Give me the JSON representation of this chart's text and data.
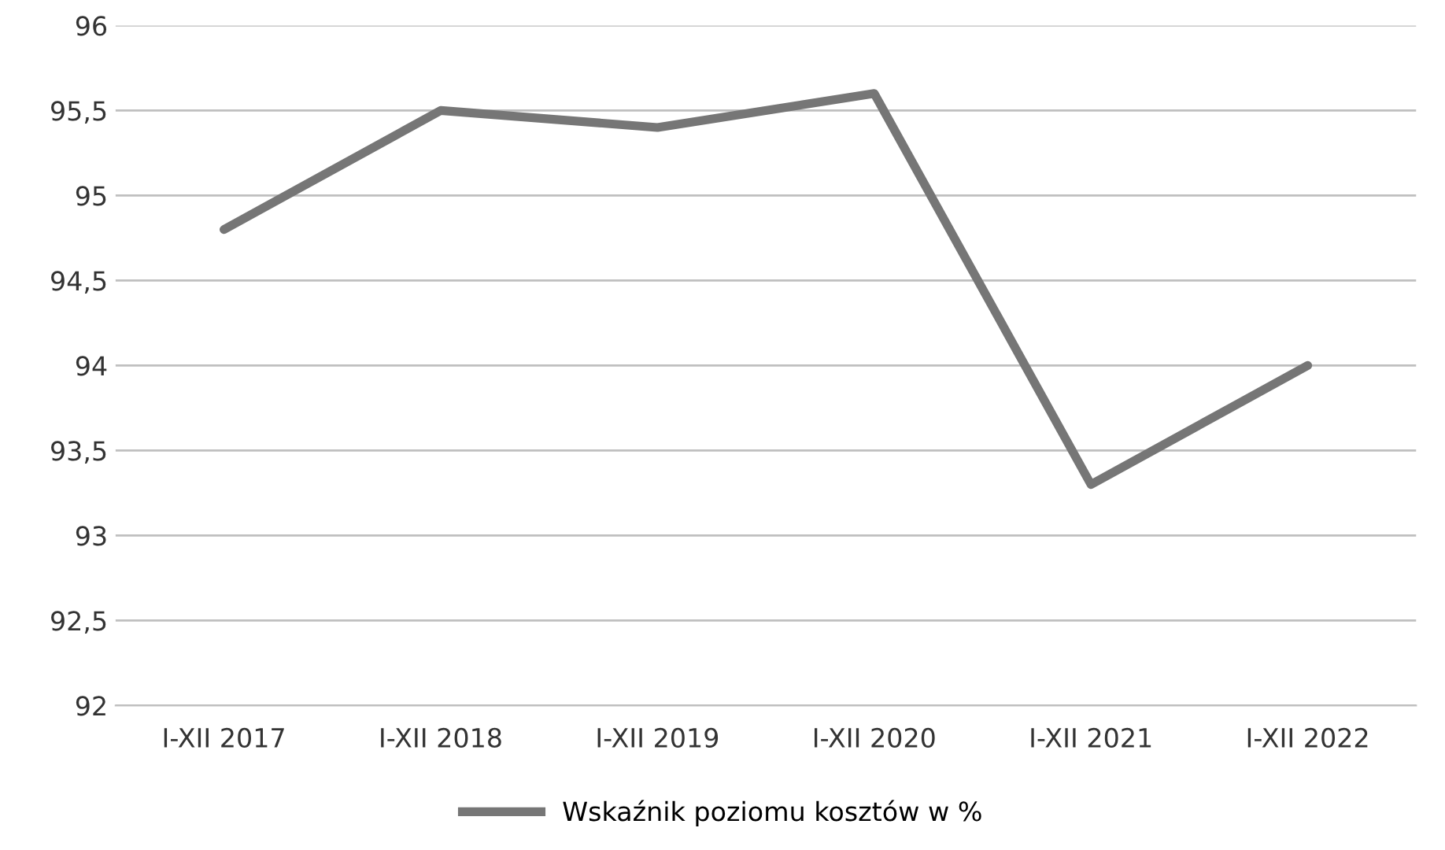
{
  "chart_data": {
    "type": "line",
    "categories": [
      "I-XII 2017",
      "I-XII 2018",
      "I-XII 2019",
      "I-XII 2020",
      "I-XII 2021",
      "I-XII 2022"
    ],
    "series": [
      {
        "name": "Wskaźnik poziomu kosztów w %",
        "color": "#767676",
        "values": [
          94.8,
          95.5,
          95.4,
          95.6,
          93.3,
          94.0
        ]
      }
    ],
    "ylim": [
      92,
      96
    ],
    "yticks": [
      92,
      {
        "value": 92.5,
        "label": "92,5"
      },
      93,
      {
        "value": 93.5,
        "label": "93,5"
      },
      94,
      {
        "value": 94.5,
        "label": "94,5"
      },
      95,
      {
        "value": 95.5,
        "label": "95,5"
      },
      96
    ],
    "grid": "y",
    "legend": "bottom",
    "marker": "none",
    "line_style": "solid"
  }
}
